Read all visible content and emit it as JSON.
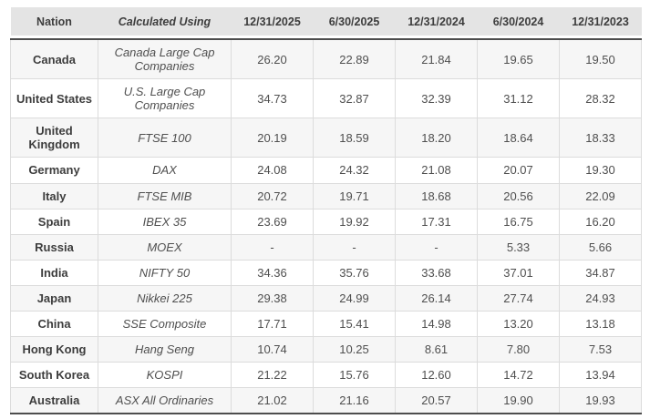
{
  "chart_data": {
    "type": "table",
    "columns": [
      "Nation",
      "Calculated Using",
      "12/31/2025",
      "6/30/2025",
      "12/31/2024",
      "6/30/2024",
      "12/31/2023"
    ],
    "rows": [
      {
        "nation": "Canada",
        "index": "Canada Large Cap Companies",
        "values": [
          "26.20",
          "22.89",
          "21.84",
          "19.65",
          "19.50"
        ]
      },
      {
        "nation": "United States",
        "index": "U.S. Large Cap Companies",
        "values": [
          "34.73",
          "32.87",
          "32.39",
          "31.12",
          "28.32"
        ]
      },
      {
        "nation": "United Kingdom",
        "index": "FTSE 100",
        "values": [
          "20.19",
          "18.59",
          "18.20",
          "18.64",
          "18.33"
        ]
      },
      {
        "nation": "Germany",
        "index": "DAX",
        "values": [
          "24.08",
          "24.32",
          "21.08",
          "20.07",
          "19.30"
        ]
      },
      {
        "nation": "Italy",
        "index": "FTSE MIB",
        "values": [
          "20.72",
          "19.71",
          "18.68",
          "20.56",
          "22.09"
        ]
      },
      {
        "nation": "Spain",
        "index": "IBEX 35",
        "values": [
          "23.69",
          "19.92",
          "17.31",
          "16.75",
          "16.20"
        ]
      },
      {
        "nation": "Russia",
        "index": "MOEX",
        "values": [
          "-",
          "-",
          "-",
          "5.33",
          "5.66"
        ]
      },
      {
        "nation": "India",
        "index": "NIFTY 50",
        "values": [
          "34.36",
          "35.76",
          "33.68",
          "37.01",
          "34.87"
        ]
      },
      {
        "nation": "Japan",
        "index": "Nikkei 225",
        "values": [
          "29.38",
          "24.99",
          "26.14",
          "27.74",
          "24.93"
        ]
      },
      {
        "nation": "China",
        "index": "SSE Composite",
        "values": [
          "17.71",
          "15.41",
          "14.98",
          "13.20",
          "13.18"
        ]
      },
      {
        "nation": "Hong Kong",
        "index": "Hang Seng",
        "values": [
          "10.74",
          "10.25",
          "8.61",
          "7.80",
          "7.53"
        ]
      },
      {
        "nation": "South Korea",
        "index": "KOSPI",
        "values": [
          "21.22",
          "15.76",
          "12.60",
          "14.72",
          "13.94"
        ]
      },
      {
        "nation": "Australia",
        "index": "ASX All Ordinaries",
        "values": [
          "21.02",
          "21.16",
          "20.57",
          "19.90",
          "19.93"
        ]
      }
    ]
  },
  "colors": {
    "header_bg": "#e4e4e4",
    "dark_border": "#4d4d4d",
    "light_border": "#dcdcdc",
    "alt_row_bg": "#f6f6f6",
    "row_bg": "#ffffff",
    "heading_text": "#3d3d3d",
    "body_text": "#4f4f4f"
  }
}
